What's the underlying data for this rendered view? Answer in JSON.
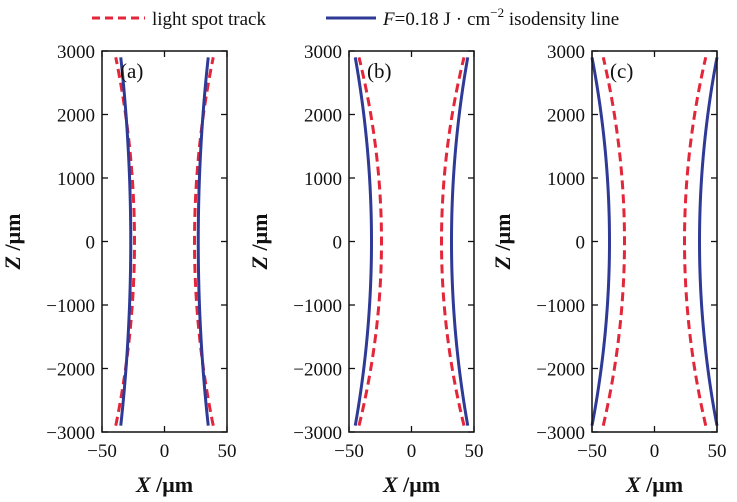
{
  "legend": {
    "dashed_label": "light spot track",
    "solid_prefix": "F",
    "solid_value": "=0.18 J",
    "solid_dot": "·",
    "solid_unit": "cm",
    "solid_exp": "−2",
    "solid_suffix": " isodensity line"
  },
  "colors": {
    "dashed": "#e4263a",
    "solid": "#2e3a96",
    "axis": "#111111"
  },
  "chart_data": [
    {
      "type": "line",
      "panel_label": "(a)",
      "xlabel_var": "X",
      "xlabel_unit": " /μm",
      "ylabel_var": "Z",
      "ylabel_unit": " /μm",
      "xlim": [
        -50,
        50
      ],
      "ylim": [
        -3000,
        3000
      ],
      "xticks": [
        -50,
        0,
        50
      ],
      "xtick_labels": [
        "−50",
        "0",
        "50"
      ],
      "yticks": [
        3000,
        2000,
        1000,
        0,
        -1000,
        -2000,
        -3000
      ],
      "ytick_labels": [
        "3000",
        "2000",
        "1000",
        "0",
        "−1000",
        "−2000",
        "−3000"
      ],
      "series": [
        {
          "name": "light spot track",
          "style": "dashed",
          "waist_x": 24,
          "edge_x": 39,
          "z_range": [
            -2900,
            2900
          ]
        },
        {
          "name": "F=0.18 J·cm−2 isodensity line",
          "style": "solid",
          "waist_x": 27,
          "edge_x": 35,
          "z_range": [
            -2900,
            2900
          ]
        }
      ]
    },
    {
      "type": "line",
      "panel_label": "(b)",
      "xlabel_var": "X",
      "xlabel_unit": " /μm",
      "ylabel_var": "Z",
      "ylabel_unit": " /μm",
      "xlim": [
        -50,
        50
      ],
      "ylim": [
        -3000,
        3000
      ],
      "xticks": [
        -50,
        0,
        50
      ],
      "xtick_labels": [
        "−50",
        "0",
        "50"
      ],
      "yticks": [
        3000,
        2000,
        1000,
        0,
        -1000,
        -2000,
        -3000
      ],
      "ytick_labels": [
        "3000",
        "2000",
        "1000",
        "0",
        "−1000",
        "−2000",
        "−3000"
      ],
      "series": [
        {
          "name": "light spot track",
          "style": "dashed",
          "waist_x": 24,
          "edge_x": 42,
          "z_range": [
            -2900,
            2900
          ]
        },
        {
          "name": "F=0.18 J·cm−2 isodensity line",
          "style": "solid",
          "waist_x": 32,
          "edge_x": 45,
          "z_range": [
            -2900,
            2900
          ]
        }
      ]
    },
    {
      "type": "line",
      "panel_label": "(c)",
      "xlabel_var": "X",
      "xlabel_unit": " /μm",
      "ylabel_var": "Z",
      "ylabel_unit": " /μm",
      "xlim": [
        -50,
        50
      ],
      "ylim": [
        -3000,
        3000
      ],
      "xticks": [
        -50,
        0,
        50
      ],
      "xtick_labels": [
        "−50",
        "0",
        "50"
      ],
      "yticks": [
        3000,
        2000,
        1000,
        0,
        -1000,
        -2000,
        -3000
      ],
      "ytick_labels": [
        "3000",
        "2000",
        "1000",
        "0",
        "−1000",
        "−2000",
        "−3000"
      ],
      "series": [
        {
          "name": "light spot track",
          "style": "dashed",
          "waist_x": 24,
          "edge_x": 41,
          "z_range": [
            -2900,
            2900
          ]
        },
        {
          "name": "F=0.18 J·cm−2 isodensity line",
          "style": "solid",
          "waist_x": 36,
          "edge_x": 50,
          "z_range": [
            -2900,
            2900
          ]
        }
      ]
    }
  ]
}
